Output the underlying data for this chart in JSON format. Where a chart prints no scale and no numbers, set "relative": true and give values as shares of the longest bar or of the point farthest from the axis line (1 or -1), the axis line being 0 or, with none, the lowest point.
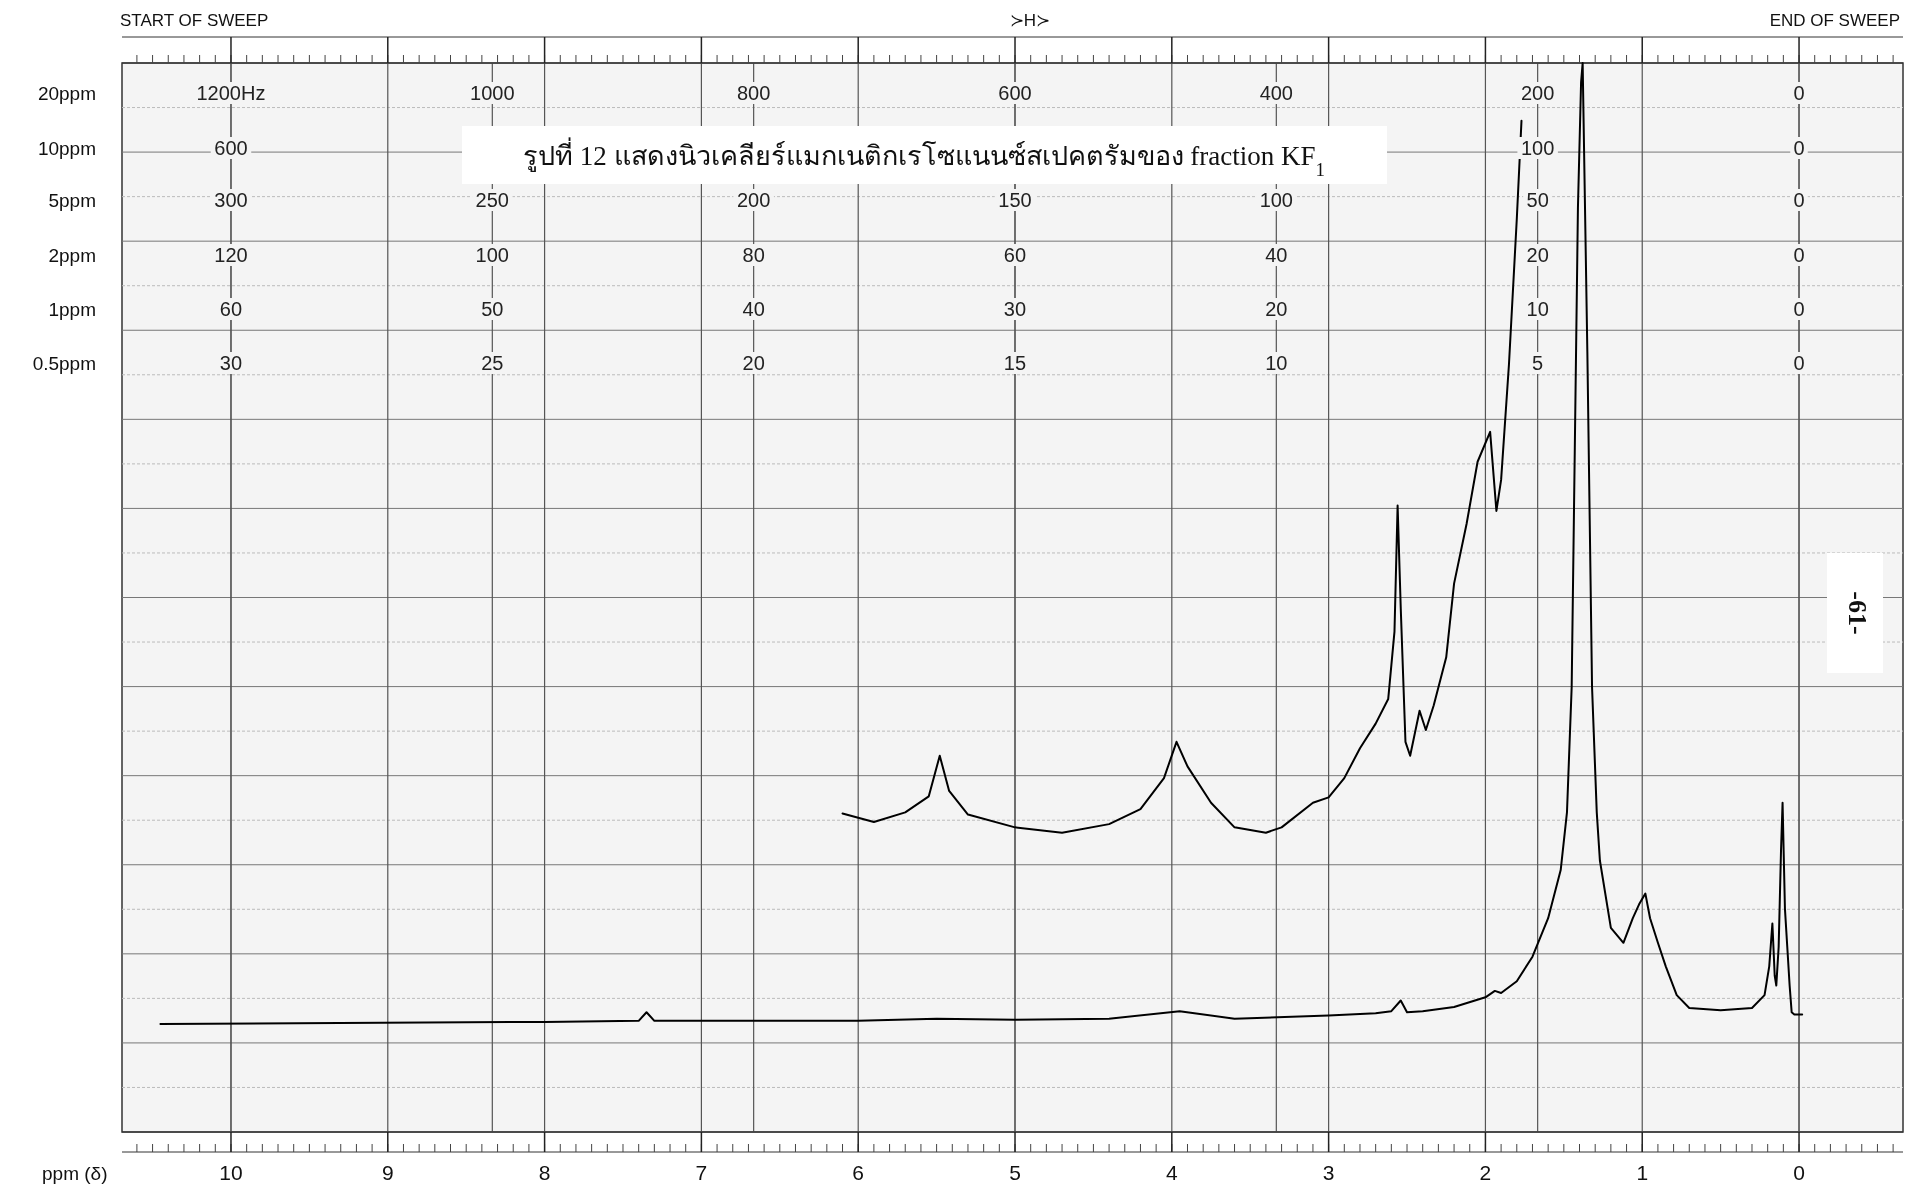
{
  "chart_data": {
    "type": "line",
    "relative": true,
    "grid": true,
    "title": "รูปที่ 12  แสดงนิวเคลียร์แมกเนติกเรโซแนนซ์สเปคตรัมของ fraction KF$_{1}$",
    "xlabel": "ppm (δ)",
    "xlim": [
      10.695,
      -0.663
    ],
    "xticks": [
      10,
      9,
      8,
      7,
      6,
      5,
      4,
      3,
      2,
      1,
      0
    ],
    "x2label": "20ppm",
    "x2lim": [
      1283.4,
      -79.6
    ],
    "x2ticks": [
      {
        "value": 1200,
        "label": "1200Hz"
      },
      1000,
      800,
      600,
      400,
      200,
      0
    ],
    "annotations": [
      "START OF SWEEP",
      "END OF SWEEP",
      "≻H≻",
      "-61-",
      "10ppm",
      "600",
      "100",
      "0",
      "5ppm",
      "300",
      "250",
      "200",
      "150",
      "100",
      "50",
      "0",
      "2ppm",
      "120",
      "100",
      "80",
      "60",
      "40",
      "20",
      "0",
      "1ppm",
      "60",
      "50",
      "40",
      "30",
      "20",
      "10",
      "0",
      "0.5ppm",
      "30",
      "25",
      "20",
      "15",
      "10",
      "5",
      "0"
    ],
    "series": [
      {
        "color": "#000000",
        "x": [
          10.45,
          8.0,
          7.4,
          7.35,
          7.3,
          6.0,
          5.5,
          5.0,
          4.4,
          3.95,
          3.6,
          3.0,
          2.7,
          2.6,
          2.54,
          2.5,
          2.4,
          2.2,
          2.0,
          1.94,
          1.9,
          1.8,
          1.7,
          1.6,
          1.52,
          1.48,
          1.45,
          1.43,
          1.41,
          1.39,
          1.38,
          1.35,
          1.32,
          1.29,
          1.27,
          1.2,
          1.12,
          1.06,
          1.02,
          0.98,
          0.95,
          0.9,
          0.85,
          0.78,
          0.7,
          0.5,
          0.3,
          0.22,
          0.19,
          0.17,
          0.155,
          0.145,
          0.13,
          0.115,
          0.105,
          0.09,
          0.075,
          0.06,
          0.047,
          0.03,
          -0.02
        ],
        "values": [
          0.101,
          0.103,
          0.104,
          0.112,
          0.104,
          0.104,
          0.106,
          0.105,
          0.106,
          0.113,
          0.106,
          0.109,
          0.111,
          0.113,
          0.123,
          0.112,
          0.113,
          0.117,
          0.126,
          0.132,
          0.13,
          0.141,
          0.164,
          0.2,
          0.245,
          0.299,
          0.416,
          0.64,
          0.865,
          0.982,
          1.0,
          0.73,
          0.416,
          0.299,
          0.254,
          0.191,
          0.177,
          0.2,
          0.213,
          0.223,
          0.2,
          0.177,
          0.155,
          0.128,
          0.116,
          0.114,
          0.116,
          0.128,
          0.155,
          0.195,
          0.146,
          0.137,
          0.173,
          0.263,
          0.308,
          0.209,
          0.173,
          0.137,
          0.112,
          0.11,
          0.11
        ]
      },
      {
        "color": "#000000",
        "x": [
          6.1,
          5.9,
          5.7,
          5.55,
          5.48,
          5.42,
          5.3,
          5.0,
          4.7,
          4.4,
          4.2,
          4.05,
          3.97,
          3.9,
          3.75,
          3.6,
          3.4,
          3.3,
          3.1,
          3.0,
          2.9,
          2.8,
          2.7,
          2.62,
          2.58,
          2.56,
          2.54,
          2.51,
          2.48,
          2.42,
          2.38,
          2.33,
          2.25,
          2.2,
          2.12,
          2.05,
          1.97,
          1.93,
          1.9,
          1.85,
          1.8,
          1.77
        ],
        "values": [
          0.298,
          0.29,
          0.299,
          0.314,
          0.352,
          0.319,
          0.297,
          0.285,
          0.28,
          0.288,
          0.302,
          0.331,
          0.365,
          0.342,
          0.308,
          0.285,
          0.28,
          0.285,
          0.308,
          0.313,
          0.331,
          0.359,
          0.382,
          0.405,
          0.468,
          0.586,
          0.49,
          0.365,
          0.352,
          0.394,
          0.376,
          0.399,
          0.444,
          0.513,
          0.569,
          0.627,
          0.655,
          0.581,
          0.61,
          0.718,
          0.854,
          0.946
        ]
      }
    ]
  }
}
